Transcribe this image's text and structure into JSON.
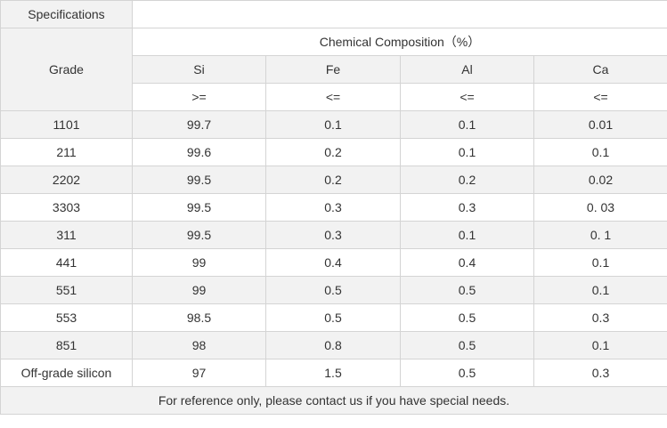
{
  "header": {
    "specifications": "Specifications",
    "grade": "Grade",
    "chemical_composition": "Chemical Composition（%）",
    "elements": [
      "Si",
      "Fe",
      "Al",
      "Ca"
    ],
    "limits": [
      ">=",
      "<=",
      "<=",
      "<="
    ]
  },
  "rows": [
    {
      "grade": "1101",
      "si": "99.7",
      "fe": "0.1",
      "al": "0.1",
      "ca": "0.01"
    },
    {
      "grade": "211",
      "si": "99.6",
      "fe": "0.2",
      "al": "0.1",
      "ca": "0.1"
    },
    {
      "grade": "2202",
      "si": "99.5",
      "fe": "0.2",
      "al": "0.2",
      "ca": "0.02"
    },
    {
      "grade": "3303",
      "si": "99.5",
      "fe": "0.3",
      "al": "0.3",
      "ca": "0. 03"
    },
    {
      "grade": "311",
      "si": "99.5",
      "fe": "0.3",
      "al": "0.1",
      "ca": "0. 1"
    },
    {
      "grade": "441",
      "si": "99",
      "fe": "0.4",
      "al": "0.4",
      "ca": "0.1"
    },
    {
      "grade": "551",
      "si": "99",
      "fe": "0.5",
      "al": "0.5",
      "ca": "0.1"
    },
    {
      "grade": "553",
      "si": "98.5",
      "fe": "0.5",
      "al": "0.5",
      "ca": "0.3"
    },
    {
      "grade": "851",
      "si": "98",
      "fe": "0.8",
      "al": "0.5",
      "ca": "0.1"
    },
    {
      "grade": "Off-grade silicon",
      "si": "97",
      "fe": "1.5",
      "al": "0.5",
      "ca": "0.3"
    }
  ],
  "footer": "For reference only, please contact us if you have special needs."
}
